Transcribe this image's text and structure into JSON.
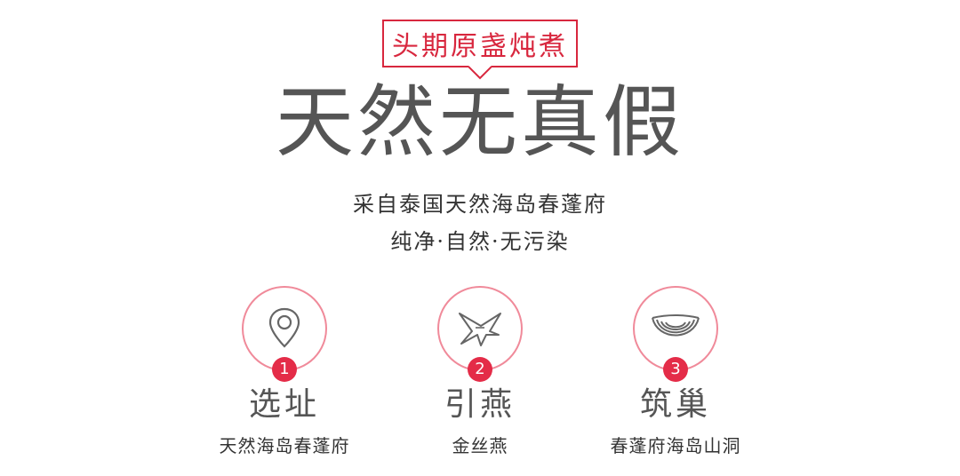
{
  "header": {
    "badge_text": "头期原盏炖煮",
    "headline": "天然无真假",
    "subtitle_line1": "采自泰国天然海岛春蓬府",
    "subtitle_line2": "纯净·自然·无污染"
  },
  "colors": {
    "accent_red": "#d8273e",
    "circle_pink": "#f08a9a",
    "number_red": "#e42c48",
    "text_gray": "#555555"
  },
  "features": [
    {
      "number": "1",
      "title": "选址",
      "subtitle": "天然海岛春蓬府",
      "icon": "location-pin-icon"
    },
    {
      "number": "2",
      "title": "引燕",
      "subtitle": "金丝燕",
      "icon": "swallow-bird-icon"
    },
    {
      "number": "3",
      "title": "筑巢",
      "subtitle": "春蓬府海岛山洞",
      "icon": "bird-nest-icon"
    }
  ]
}
